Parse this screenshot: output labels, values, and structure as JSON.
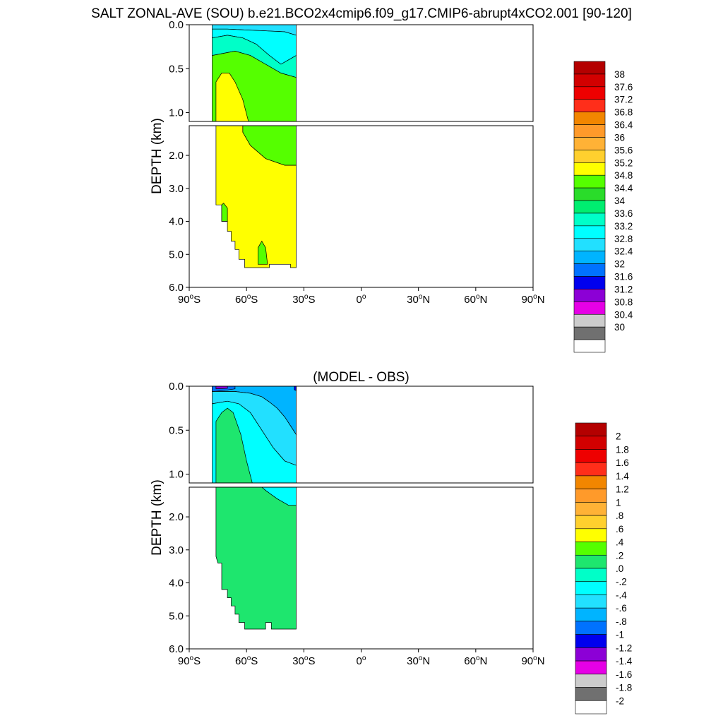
{
  "title": "SALT ZONAL-AVE (SOU) b.e21.BCO2x4cmip6.f09_g17.CMIP6-abrupt4xCO2.001 [90-120]",
  "chart_data": [
    {
      "type": "heatmap",
      "title": "",
      "ylabel": "DEPTH (km)",
      "xlim": [
        -90,
        90
      ],
      "ylim": [
        6.0,
        0.0
      ],
      "upper_panel_depth_range": [
        0.0,
        1.1
      ],
      "lower_panel_depth_range": [
        1.1,
        6.0
      ],
      "x_ticks": [
        {
          "value": -90,
          "num": "90",
          "hemi": "S"
        },
        {
          "value": -60,
          "num": "60",
          "hemi": "S"
        },
        {
          "value": -30,
          "num": "30",
          "hemi": "S"
        },
        {
          "value": 0,
          "num": "0",
          "hemi": ""
        },
        {
          "value": 30,
          "num": "30",
          "hemi": "N"
        },
        {
          "value": 60,
          "num": "60",
          "hemi": "N"
        },
        {
          "value": 90,
          "num": "90",
          "hemi": "N"
        }
      ],
      "y_ticks_upper": [
        "0.0",
        "0.5",
        "1.0"
      ],
      "y_ticks_lower": [
        "2.0",
        "3.0",
        "4.0",
        "5.0",
        "6.0"
      ],
      "y_tick_values_upper": [
        0.0,
        0.5,
        1.0
      ],
      "y_tick_values_lower": [
        2.0,
        3.0,
        4.0,
        5.0,
        6.0
      ],
      "colorbar_labels": [
        "38",
        "37.6",
        "37.2",
        "36.8",
        "36.4",
        "36",
        "35.6",
        "35.2",
        "34.8",
        "34.4",
        "34",
        "33.6",
        "33.2",
        "32.8",
        "32.4",
        "32",
        "31.6",
        "31.2",
        "30.8",
        "30.4",
        "30"
      ],
      "colorbar_colors": [
        "#b40000",
        "#d20000",
        "#ee0000",
        "#ff2e1a",
        "#f28600",
        "#ff9a2a",
        "#ffb236",
        "#ffd02e",
        "#ffff00",
        "#55ff00",
        "#2adc2a",
        "#00ee70",
        "#00ffc8",
        "#00ffff",
        "#22e0ff",
        "#00b4ff",
        "#0072ff",
        "#0000ee",
        "#8c00d6",
        "#e600e6",
        "#cccccc",
        "#707070",
        "#ffffff"
      ],
      "regions_upper": [
        {
          "color": "#22e0ff",
          "pts": [
            [
              -78,
              0
            ],
            [
              -34,
              0
            ],
            [
              -34,
              0.12
            ],
            [
              -40,
              0.08
            ],
            [
              -50,
              0.07
            ],
            [
              -60,
              0.06
            ],
            [
              -70,
              0.05
            ],
            [
              -78,
              0.05
            ]
          ]
        },
        {
          "color": "#00ffff",
          "pts": [
            [
              -78,
              0.05
            ],
            [
              -70,
              0.05
            ],
            [
              -60,
              0.06
            ],
            [
              -50,
              0.07
            ],
            [
              -40,
              0.08
            ],
            [
              -34,
              0.12
            ],
            [
              -34,
              0.35
            ],
            [
              -38,
              0.4
            ],
            [
              -42,
              0.45
            ],
            [
              -48,
              0.35
            ],
            [
              -55,
              0.22
            ],
            [
              -62,
              0.15
            ],
            [
              -70,
              0.12
            ],
            [
              -78,
              0.15
            ]
          ]
        },
        {
          "color": "#00ffc8",
          "pts": [
            [
              -78,
              0.15
            ],
            [
              -70,
              0.12
            ],
            [
              -62,
              0.15
            ],
            [
              -55,
              0.22
            ],
            [
              -48,
              0.35
            ],
            [
              -42,
              0.45
            ],
            [
              -38,
              0.4
            ],
            [
              -34,
              0.35
            ],
            [
              -34,
              0.6
            ],
            [
              -42,
              0.55
            ],
            [
              -50,
              0.45
            ],
            [
              -58,
              0.35
            ],
            [
              -66,
              0.3
            ],
            [
              -78,
              0.35
            ]
          ]
        },
        {
          "color": "#55ff00",
          "pts": [
            [
              -78,
              0.35
            ],
            [
              -66,
              0.3
            ],
            [
              -58,
              0.35
            ],
            [
              -50,
              0.45
            ],
            [
              -42,
              0.55
            ],
            [
              -34,
              0.6
            ],
            [
              -34,
              1.1
            ],
            [
              -78,
              1.1
            ]
          ]
        },
        {
          "color": "#ffff00",
          "pts": [
            [
              -76,
              1.1
            ],
            [
              -76,
              0.65
            ],
            [
              -73,
              0.55
            ],
            [
              -69,
              0.55
            ],
            [
              -66,
              0.65
            ],
            [
              -62,
              0.85
            ],
            [
              -59,
              1.1
            ]
          ]
        }
      ],
      "regions_lower": [
        {
          "color": "#55ff00",
          "pts": [
            [
              -34,
              1.1
            ],
            [
              -34,
              2.3
            ],
            [
              -40,
              2.3
            ],
            [
              -50,
              2.1
            ],
            [
              -58,
              1.7
            ],
            [
              -62,
              1.3
            ],
            [
              -62,
              1.1
            ]
          ]
        },
        {
          "color": "#ffff00",
          "pts": [
            [
              -76,
              1.1
            ],
            [
              -62,
              1.1
            ],
            [
              -62,
              1.3
            ],
            [
              -58,
              1.7
            ],
            [
              -50,
              2.1
            ],
            [
              -40,
              2.3
            ],
            [
              -34,
              2.3
            ],
            [
              -34,
              5.4
            ],
            [
              -37,
              5.4
            ],
            [
              -37,
              5.3
            ],
            [
              -48,
              5.3
            ],
            [
              -48,
              5.4
            ],
            [
              -61,
              5.4
            ],
            [
              -61,
              5.15
            ],
            [
              -64,
              5.15
            ],
            [
              -64,
              4.85
            ],
            [
              -66,
              4.85
            ],
            [
              -66,
              4.6
            ],
            [
              -68,
              4.6
            ],
            [
              -68,
              4.3
            ],
            [
              -70,
              4.3
            ],
            [
              -70,
              4.0
            ],
            [
              -73,
              4.0
            ],
            [
              -73,
              3.5
            ],
            [
              -76,
              3.5
            ]
          ]
        },
        {
          "color": "#55ff00",
          "pts": [
            [
              -73,
              4.0
            ],
            [
              -73,
              3.5
            ],
            [
              -72,
              3.45
            ],
            [
              -70,
              3.6
            ],
            [
              -70,
              4.0
            ]
          ]
        },
        {
          "color": "#55ff00",
          "pts": [
            [
              -54,
              5.3
            ],
            [
              -54,
              4.8
            ],
            [
              -52,
              4.6
            ],
            [
              -50,
              4.8
            ],
            [
              -49,
              5.3
            ]
          ]
        }
      ]
    },
    {
      "type": "heatmap",
      "title": "(MODEL - OBS)",
      "ylabel": "DEPTH (km)",
      "xlim": [
        -90,
        90
      ],
      "ylim": [
        6.0,
        0.0
      ],
      "upper_panel_depth_range": [
        0.0,
        1.1
      ],
      "lower_panel_depth_range": [
        1.1,
        6.0
      ],
      "x_ticks": [
        {
          "value": -90,
          "num": "90",
          "hemi": "S"
        },
        {
          "value": -60,
          "num": "60",
          "hemi": "S"
        },
        {
          "value": -30,
          "num": "30",
          "hemi": "S"
        },
        {
          "value": 0,
          "num": "0",
          "hemi": ""
        },
        {
          "value": 30,
          "num": "30",
          "hemi": "N"
        },
        {
          "value": 60,
          "num": "60",
          "hemi": "N"
        },
        {
          "value": 90,
          "num": "90",
          "hemi": "N"
        }
      ],
      "y_ticks_upper": [
        "0.0",
        "0.5",
        "1.0"
      ],
      "y_ticks_lower": [
        "2.0",
        "3.0",
        "4.0",
        "5.0",
        "6.0"
      ],
      "y_tick_values_upper": [
        0.0,
        0.5,
        1.0
      ],
      "y_tick_values_lower": [
        2.0,
        3.0,
        4.0,
        5.0,
        6.0
      ],
      "colorbar_labels": [
        "2",
        "1.8",
        "1.6",
        "1.4",
        "1.2",
        "1",
        ".8",
        ".6",
        ".4",
        ".2",
        ".0",
        "-.2",
        "-.4",
        "-.6",
        "-.8",
        "-1",
        "-1.2",
        "-1.4",
        "-1.6",
        "-1.8",
        "-2"
      ],
      "colorbar_colors": [
        "#b40000",
        "#d20000",
        "#ee0000",
        "#ff2e1a",
        "#f28600",
        "#ff9a2a",
        "#ffb236",
        "#ffd02e",
        "#ffff00",
        "#55ff00",
        "#1ee66e",
        "#00ffc8",
        "#00ffff",
        "#22e0ff",
        "#00b4ff",
        "#0072ff",
        "#0000ee",
        "#8c00d6",
        "#e600e6",
        "#cccccc",
        "#707070",
        "#ffffff"
      ],
      "regions_upper": [
        {
          "color": "#00b4ff",
          "pts": [
            [
              -78,
              0
            ],
            [
              -34,
              0
            ],
            [
              -34,
              0.55
            ],
            [
              -37,
              0.45
            ],
            [
              -40,
              0.35
            ],
            [
              -44,
              0.25
            ],
            [
              -48,
              0.18
            ],
            [
              -52,
              0.12
            ],
            [
              -58,
              0.08
            ],
            [
              -66,
              0.06
            ],
            [
              -78,
              0.06
            ]
          ]
        },
        {
          "color": "#22e0ff",
          "pts": [
            [
              -78,
              0.06
            ],
            [
              -66,
              0.06
            ],
            [
              -58,
              0.08
            ],
            [
              -52,
              0.12
            ],
            [
              -48,
              0.18
            ],
            [
              -44,
              0.25
            ],
            [
              -40,
              0.35
            ],
            [
              -37,
              0.45
            ],
            [
              -34,
              0.55
            ],
            [
              -34,
              0.9
            ],
            [
              -40,
              0.85
            ],
            [
              -46,
              0.7
            ],
            [
              -52,
              0.5
            ],
            [
              -58,
              0.3
            ],
            [
              -64,
              0.2
            ],
            [
              -70,
              0.17
            ],
            [
              -78,
              0.2
            ]
          ]
        },
        {
          "color": "#00ffff",
          "pts": [
            [
              -78,
              0.2
            ],
            [
              -70,
              0.17
            ],
            [
              -64,
              0.2
            ],
            [
              -58,
              0.3
            ],
            [
              -52,
              0.5
            ],
            [
              -46,
              0.7
            ],
            [
              -40,
              0.85
            ],
            [
              -34,
              0.9
            ],
            [
              -34,
              1.1
            ],
            [
              -78,
              1.1
            ]
          ]
        },
        {
          "color": "#1ee66e",
          "pts": [
            [
              -76,
              1.1
            ],
            [
              -76,
              0.4
            ],
            [
              -73,
              0.3
            ],
            [
              -70,
              0.25
            ],
            [
              -67,
              0.3
            ],
            [
              -63,
              0.55
            ],
            [
              -60,
              0.85
            ],
            [
              -57,
              1.1
            ]
          ]
        },
        {
          "color": "#0072ff",
          "pts": [
            [
              -78,
              0
            ],
            [
              -66,
              0
            ],
            [
              -66,
              0.03
            ],
            [
              -72,
              0.05
            ],
            [
              -78,
              0.06
            ]
          ]
        },
        {
          "color": "#8c00d6",
          "pts": [
            [
              -76,
              0
            ],
            [
              -70,
              0
            ],
            [
              -70,
              0.025
            ],
            [
              -76,
              0.03
            ]
          ]
        },
        {
          "color": "#0000ee",
          "pts": [
            [
              -35,
              0
            ],
            [
              -34,
              0
            ],
            [
              -34,
              0.05
            ],
            [
              -35,
              0.04
            ]
          ]
        }
      ],
      "regions_lower": [
        {
          "color": "#00ffff",
          "pts": [
            [
              -34,
              1.1
            ],
            [
              -34,
              1.65
            ],
            [
              -38,
              1.65
            ],
            [
              -44,
              1.45
            ],
            [
              -50,
              1.2
            ],
            [
              -52,
              1.1
            ]
          ]
        },
        {
          "color": "#1ee66e",
          "pts": [
            [
              -76,
              1.1
            ],
            [
              -52,
              1.1
            ],
            [
              -50,
              1.2
            ],
            [
              -44,
              1.45
            ],
            [
              -38,
              1.65
            ],
            [
              -34,
              1.65
            ],
            [
              -34,
              5.4
            ],
            [
              -47,
              5.4
            ],
            [
              -47,
              5.2
            ],
            [
              -50,
              5.2
            ],
            [
              -50,
              5.4
            ],
            [
              -61,
              5.4
            ],
            [
              -61,
              5.2
            ],
            [
              -64,
              5.2
            ],
            [
              -64,
              4.95
            ],
            [
              -66,
              4.95
            ],
            [
              -66,
              4.7
            ],
            [
              -68,
              4.7
            ],
            [
              -68,
              4.45
            ],
            [
              -70,
              4.45
            ],
            [
              -70,
              4.2
            ],
            [
              -73,
              4.2
            ],
            [
              -73,
              3.4
            ],
            [
              -75,
              3.4
            ],
            [
              -76,
              3.2
            ]
          ]
        }
      ]
    }
  ]
}
